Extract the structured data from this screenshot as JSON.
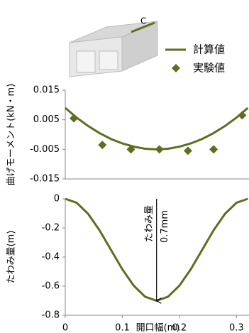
{
  "figure": {
    "label": "C"
  },
  "chart_data": [
    {
      "type": "line",
      "ylabel": "曲げモーメント(kN・m)",
      "xlim": [
        0,
        0.322
      ],
      "ylim": [
        -0.015,
        0.015
      ],
      "yticks": [
        0.015,
        0.005,
        -0.005,
        -0.015
      ],
      "legend": "top-right",
      "series": [
        {
          "name": "計算値",
          "type": "line",
          "color": "#5b6f1f",
          "x": [
            0,
            0.02,
            0.04,
            0.06,
            0.08,
            0.1,
            0.12,
            0.14,
            0.16,
            0.18,
            0.2,
            0.22,
            0.24,
            0.26,
            0.28,
            0.3,
            0.32
          ],
          "values": [
            0.009,
            0.0057,
            0.0029,
            0.0005,
            -0.0015,
            -0.003,
            -0.0041,
            -0.0048,
            -0.005,
            -0.0048,
            -0.0041,
            -0.003,
            -0.0015,
            0.0005,
            0.0029,
            0.0057,
            0.009
          ]
        },
        {
          "name": "実験値",
          "type": "scatter",
          "color": "#5b6f1f",
          "x": [
            0.015,
            0.065,
            0.115,
            0.165,
            0.215,
            0.26,
            0.31
          ],
          "values": [
            0.0055,
            -0.0035,
            -0.005,
            -0.005,
            -0.0055,
            -0.005,
            0.0065
          ]
        }
      ]
    },
    {
      "type": "line",
      "ylabel": "たわみ量(m)",
      "xlabel": "開口幅(m)",
      "xlim": [
        0,
        0.322
      ],
      "ylim": [
        -0.8,
        0
      ],
      "xticks": [
        0,
        0.1,
        0.2,
        0.3
      ],
      "yticks": [
        0,
        -0.2,
        -0.4,
        -0.6,
        -0.8
      ],
      "annotations": [
        "たわみ量",
        "0.7mm"
      ],
      "series": [
        {
          "type": "line",
          "color": "#5b6f1f",
          "x": [
            0,
            0.02,
            0.04,
            0.06,
            0.08,
            0.1,
            0.12,
            0.14,
            0.16,
            0.18,
            0.2,
            0.22,
            0.24,
            0.26,
            0.28,
            0.3,
            0.32
          ],
          "values": [
            0,
            -0.027,
            -0.103,
            -0.216,
            -0.35,
            -0.484,
            -0.597,
            -0.673,
            -0.7,
            -0.673,
            -0.597,
            -0.484,
            -0.35,
            -0.216,
            -0.103,
            -0.027,
            0
          ]
        }
      ]
    }
  ]
}
